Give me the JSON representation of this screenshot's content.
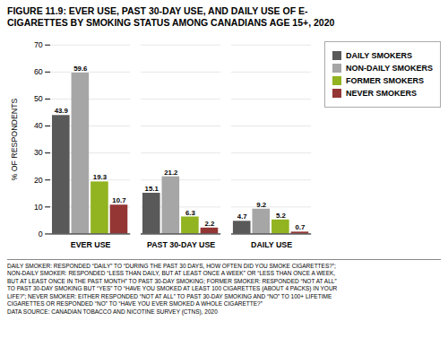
{
  "chart_data": {
    "type": "bar",
    "title": "FIGURE 11.9: EVER USE, PAST 30-DAY USE, AND DAILY USE OF E-\nCIGARETTES BY SMOKING STATUS AMONG CANADIANS AGE 15+, 2020",
    "categories": [
      "EVER USE",
      "PAST 30-DAY USE",
      "DAILY USE"
    ],
    "series": [
      {
        "name": "DAILY SMOKERS",
        "color": "#595959",
        "values": [
          43.9,
          15.1,
          4.7
        ]
      },
      {
        "name": "NON-DAILY SMOKERS",
        "color": "#a6a6a6",
        "values": [
          59.6,
          21.2,
          9.2
        ]
      },
      {
        "name": "FORMER SMOKERS",
        "color": "#92b420",
        "values": [
          19.3,
          6.3,
          5.2
        ]
      },
      {
        "name": "NEVER SMOKERS",
        "color": "#943634",
        "values": [
          10.7,
          2.2,
          0.7
        ]
      }
    ],
    "ylabel": "% OF RESPONDENTS",
    "ylim": [
      0,
      70
    ],
    "yticks": [
      0,
      10,
      20,
      30,
      40,
      50,
      60,
      70
    ],
    "grid": true,
    "legend": "right",
    "data_labels": true,
    "annotations": [
      "DAILY SMOKER: RESPONDED “DAILY” TO “DURING THE PAST 30 DAYS, HOW OFTEN DID YOU SMOKE CIGARETTES?”;\nNON-DAILY SMOKER: RESPONDED “LESS THAN DAILY, BUT AT LEAST ONCE A WEEK” OR “LESS THAN ONCE A WEEK,\nBUT AT LEAST ONCE IN THE PAST MONTH” TO PAST 30-DAY SMOKING; FORMER SMOKER: RESPONDED “NOT AT ALL”\nTO PAST 30-DAY SMOKING BUT “YES” TO “HAVE YOU SMOKED AT LEAST 100 CIGARETTES (ABOUT 4 PACKS) IN YOUR\nLIFE?”; NEVER SMOKER: EITHER RESPONDED “NOT AT ALL” TO PAST 30-DAY SMOKING AND “NO” TO 100+ LIFETIME\nCIGARETTES OR RESPONDED “NO” TO “HAVE YOU EVER SMOKED A WHOLE CIGARETTE?”\nDATA SOURCE: CANADIAN TOBACCO AND NICOTINE SURVEY (CTNS), 2020"
    ]
  }
}
